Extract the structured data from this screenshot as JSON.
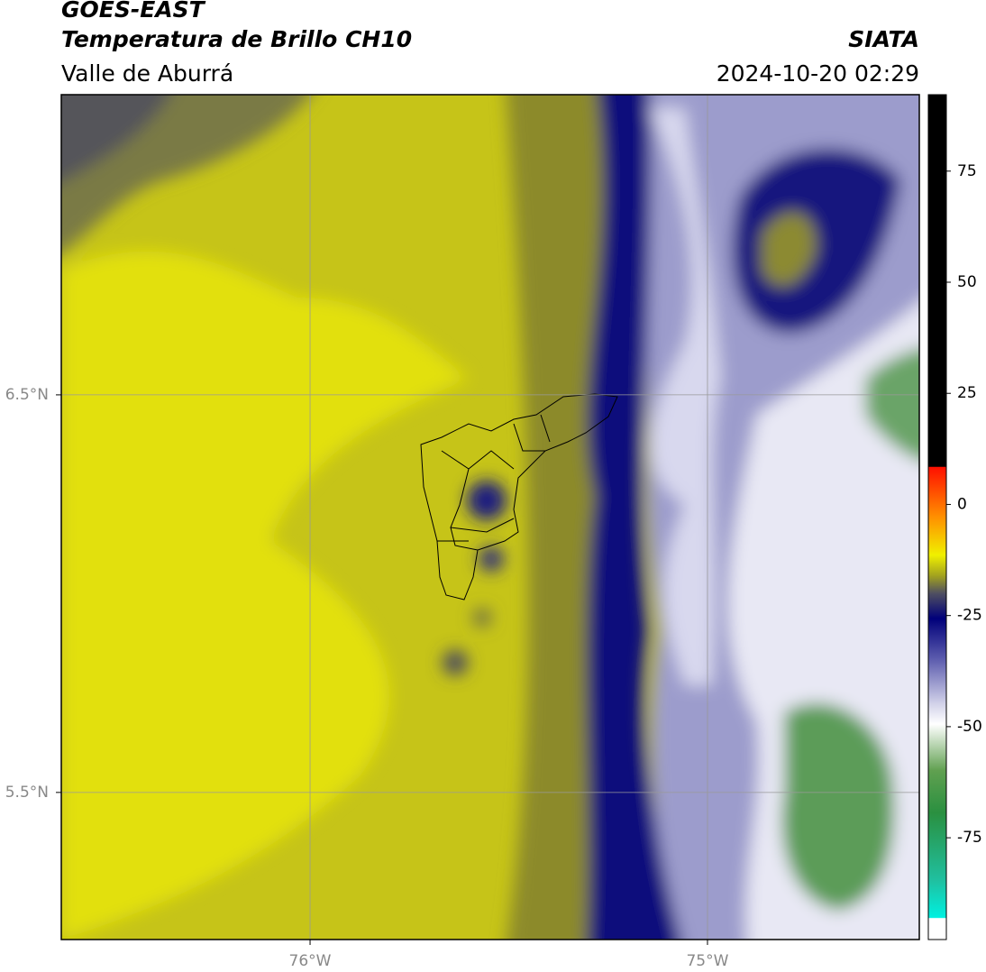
{
  "header": {
    "title": "GOES-EAST",
    "subtitle": "Temperatura de Brillo CH10",
    "region": "Valle de Aburrá",
    "source": "SIATA",
    "datetime": "2024-10-20 02:29"
  },
  "map": {
    "xlim": [
      -76.626,
      -74.467
    ],
    "ylim": [
      5.13,
      7.255
    ],
    "xticks": [
      {
        "value": -76,
        "label": "76°W"
      },
      {
        "value": -75,
        "label": "75°W"
      }
    ],
    "yticks": [
      {
        "value": 6.5,
        "label": "6.5°N"
      },
      {
        "value": 5.5,
        "label": "5.5°N"
      }
    ],
    "grid": true
  },
  "colorbar": {
    "lim": [
      -97.9,
      92.2
    ],
    "ticks": [
      -75,
      -50,
      -25,
      0,
      25,
      50,
      75
    ]
  }
}
